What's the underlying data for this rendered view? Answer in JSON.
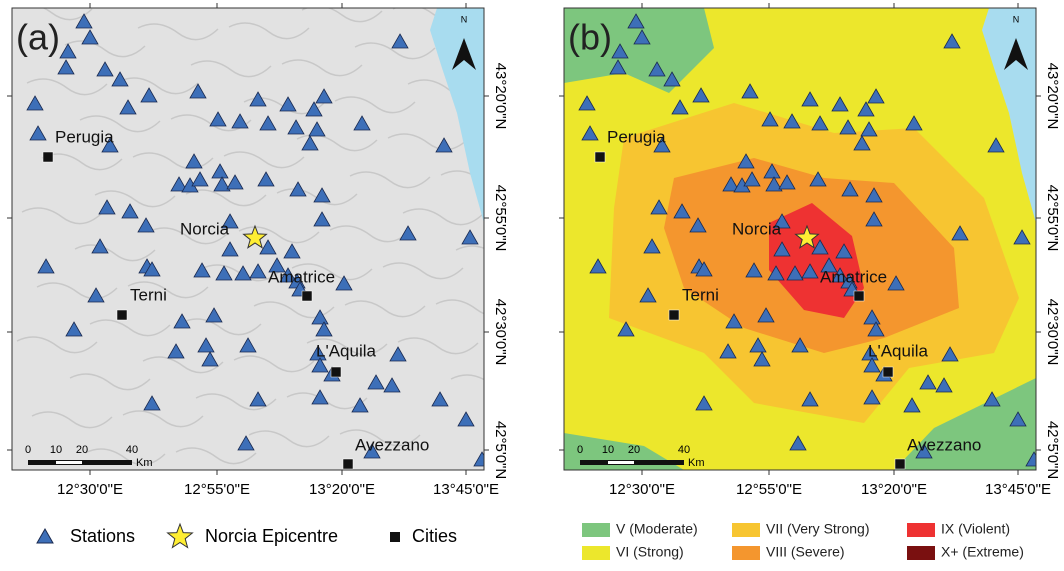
{
  "panels": [
    {
      "label": "(a)"
    },
    {
      "label": "(b)"
    }
  ],
  "cities": [
    {
      "name": "Perugia"
    },
    {
      "name": "Norcia"
    },
    {
      "name": "Amatrice"
    },
    {
      "name": "Terni"
    },
    {
      "name": "L'Aquila"
    },
    {
      "name": "Avezzano"
    }
  ],
  "scale_bar": {
    "ticks": [
      "0",
      "10",
      "20",
      "40"
    ],
    "unit": "Km"
  },
  "north": "N",
  "lon_ticks": [
    "12°30'0\"E",
    "12°55'0\"E",
    "13°20'0\"E",
    "13°45'0\"E"
  ],
  "lat_ticks": [
    "43°20'0\"N",
    "42°55'0\"N",
    "42°30'0\"N",
    "42°5'0\"N"
  ],
  "legend": {
    "items": [
      {
        "label": "Stations"
      },
      {
        "label": "Norcia Epicentre"
      },
      {
        "label": "Cities"
      }
    ]
  },
  "intensity_legend": [
    {
      "label": "V (Moderate)",
      "color": "#7dc67e"
    },
    {
      "label": "VI (Strong)",
      "color": "#ece72c"
    },
    {
      "label": "VII (Very Strong)",
      "color": "#f7c531"
    },
    {
      "label": "VIII (Severe)",
      "color": "#f4962e"
    },
    {
      "label": "IX (Violent)",
      "color": "#ee3232"
    },
    {
      "label": "X+ (Extreme)",
      "color": "#7a1010"
    }
  ]
}
